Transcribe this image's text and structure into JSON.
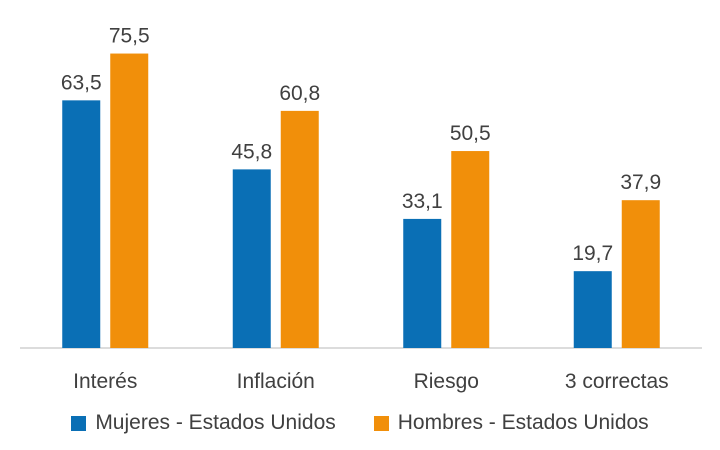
{
  "chart_data": {
    "type": "bar",
    "title": "",
    "xlabel": "",
    "ylabel": "",
    "categories": [
      "Interés",
      "Inflación",
      "Riesgo",
      "3 correctas"
    ],
    "series": [
      {
        "name": "Mujeres - Estados Unidos",
        "color": "#0a6fb5",
        "values": [
          63.5,
          45.8,
          33.1,
          19.7
        ],
        "labels": [
          "63,5",
          "45,8",
          "33,1",
          "19,7"
        ]
      },
      {
        "name": "Hombres - Estados Unidos",
        "color": "#f18f0a",
        "values": [
          75.5,
          60.8,
          50.5,
          37.9
        ],
        "labels": [
          "75,5",
          "60,8",
          "50,5",
          "37,9"
        ]
      }
    ],
    "ylim": [
      0,
      80
    ],
    "grid": false,
    "legend_position": "bottom"
  }
}
